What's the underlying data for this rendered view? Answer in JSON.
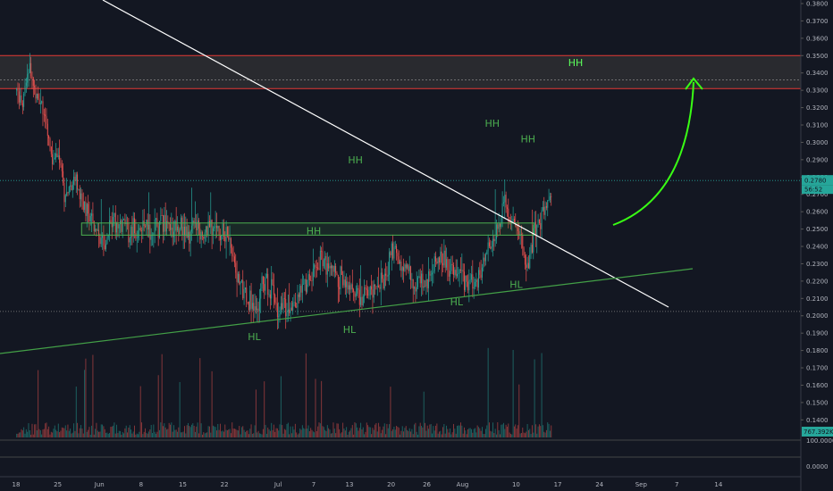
{
  "chart_data": {
    "type": "candlestick",
    "colors": {
      "up": "#26a69a",
      "down": "#ef5350",
      "zone_green": "#4caf50",
      "zone_red": "#e53935",
      "trendline": "#ffffff",
      "support": "#43a047",
      "arrow": "#39ff14",
      "background": "#131722"
    },
    "y_ticks": [
      "0.3800",
      "0.3700",
      "0.3600",
      "0.3500",
      "0.3400",
      "0.3300",
      "0.3200",
      "0.3100",
      "0.3000",
      "0.2900",
      "0.2800",
      "0.2700",
      "0.2600",
      "0.2500",
      "0.2400",
      "0.2300",
      "0.2200",
      "0.2100",
      "0.2000",
      "0.1900",
      "0.1800",
      "0.1700",
      "0.1600",
      "0.1500",
      "0.1400"
    ],
    "y_values": [
      0.38,
      0.37,
      0.36,
      0.35,
      0.34,
      0.33,
      0.32,
      0.31,
      0.3,
      0.29,
      0.28,
      0.27,
      0.26,
      0.25,
      0.24,
      0.23,
      0.22,
      0.21,
      0.2,
      0.19,
      0.18,
      0.17,
      0.16,
      0.15,
      0.14
    ],
    "ylim": [
      0.135,
      0.385
    ],
    "x_ticks": [
      {
        "label": "18",
        "day": 0
      },
      {
        "label": "25",
        "day": 7
      },
      {
        "label": "Jun",
        "day": 14
      },
      {
        "label": "8",
        "day": 21
      },
      {
        "label": "15",
        "day": 28
      },
      {
        "label": "22",
        "day": 35
      },
      {
        "label": "Jul",
        "day": 44
      },
      {
        "label": "7",
        "day": 50
      },
      {
        "label": "13",
        "day": 56
      },
      {
        "label": "20",
        "day": 63
      },
      {
        "label": "26",
        "day": 69
      },
      {
        "label": "Aug",
        "day": 75
      },
      {
        "label": "10",
        "day": 84
      },
      {
        "label": "17",
        "day": 91
      },
      {
        "label": "24",
        "day": 98
      },
      {
        "label": "Sep",
        "day": 105
      },
      {
        "label": "7",
        "day": 111
      },
      {
        "label": "14",
        "day": 118
      }
    ],
    "price_path": [
      [
        0,
        0.33
      ],
      [
        1,
        0.32
      ],
      [
        2,
        0.345
      ],
      [
        3,
        0.33
      ],
      [
        4,
        0.325
      ],
      [
        5,
        0.305
      ],
      [
        6,
        0.29
      ],
      [
        7,
        0.295
      ],
      [
        8,
        0.27
      ],
      [
        9,
        0.275
      ],
      [
        10,
        0.28
      ],
      [
        11,
        0.265
      ],
      [
        12,
        0.26
      ],
      [
        13,
        0.255
      ],
      [
        14,
        0.24
      ],
      [
        15,
        0.245
      ],
      [
        16,
        0.255
      ],
      [
        17,
        0.25
      ],
      [
        18,
        0.252
      ],
      [
        19,
        0.248
      ],
      [
        20,
        0.252
      ],
      [
        21,
        0.25
      ],
      [
        22,
        0.248
      ],
      [
        23,
        0.25
      ],
      [
        24,
        0.252
      ],
      [
        25,
        0.255
      ],
      [
        26,
        0.25
      ],
      [
        27,
        0.253
      ],
      [
        28,
        0.25
      ],
      [
        29,
        0.248
      ],
      [
        30,
        0.252
      ],
      [
        31,
        0.247
      ],
      [
        32,
        0.25
      ],
      [
        33,
        0.253
      ],
      [
        34,
        0.252
      ],
      [
        35,
        0.248
      ],
      [
        36,
        0.24
      ],
      [
        37,
        0.225
      ],
      [
        38,
        0.215
      ],
      [
        39,
        0.21
      ],
      [
        40,
        0.2
      ],
      [
        41,
        0.215
      ],
      [
        42,
        0.22
      ],
      [
        43,
        0.215
      ],
      [
        44,
        0.205
      ],
      [
        45,
        0.207
      ],
      [
        46,
        0.205
      ],
      [
        47,
        0.208
      ],
      [
        48,
        0.215
      ],
      [
        49,
        0.222
      ],
      [
        50,
        0.225
      ],
      [
        51,
        0.235
      ],
      [
        52,
        0.23
      ],
      [
        53,
        0.228
      ],
      [
        54,
        0.222
      ],
      [
        55,
        0.22
      ],
      [
        56,
        0.215
      ],
      [
        57,
        0.21
      ],
      [
        58,
        0.212
      ],
      [
        59,
        0.213
      ],
      [
        60,
        0.215
      ],
      [
        61,
        0.218
      ],
      [
        62,
        0.222
      ],
      [
        63,
        0.24
      ],
      [
        64,
        0.23
      ],
      [
        65,
        0.228
      ],
      [
        66,
        0.225
      ],
      [
        67,
        0.22
      ],
      [
        68,
        0.222
      ],
      [
        69,
        0.218
      ],
      [
        70,
        0.23
      ],
      [
        71,
        0.235
      ],
      [
        72,
        0.232
      ],
      [
        73,
        0.225
      ],
      [
        74,
        0.222
      ],
      [
        75,
        0.22
      ],
      [
        76,
        0.218
      ],
      [
        77,
        0.219
      ],
      [
        78,
        0.225
      ],
      [
        79,
        0.235
      ],
      [
        80,
        0.245
      ],
      [
        81,
        0.255
      ],
      [
        82,
        0.265
      ],
      [
        83,
        0.255
      ],
      [
        84,
        0.25
      ],
      [
        85,
        0.24
      ],
      [
        86,
        0.23
      ],
      [
        87,
        0.25
      ],
      [
        88,
        0.255
      ],
      [
        89,
        0.265
      ],
      [
        90,
        0.27
      ]
    ],
    "current_price": {
      "label": "0.2780",
      "countdown": "56:52",
      "value": 0.278
    },
    "resistance_zone": {
      "top": 0.35,
      "bottom": 0.331,
      "mid": 0.336
    },
    "breakout_zone": {
      "top": 0.2535,
      "bottom": 0.2465,
      "day_start": 11,
      "day_end": 87
    },
    "support_line": {
      "value": 0.2025
    },
    "annotations": [
      {
        "label": "HH",
        "day": 57,
        "value": 0.288
      },
      {
        "label": "HH",
        "day": 50,
        "value": 0.247
      },
      {
        "label": "HH",
        "day": 80,
        "value": 0.309
      },
      {
        "label": "HH",
        "day": 86,
        "value": 0.3
      },
      {
        "label": "HH",
        "day": 94,
        "value": 0.344
      },
      {
        "label": "HL",
        "day": 40,
        "value": 0.186
      },
      {
        "label": "HL",
        "day": 56,
        "value": 0.19
      },
      {
        "label": "HL",
        "day": 74,
        "value": 0.206
      },
      {
        "label": "HL",
        "day": 84,
        "value": 0.216
      }
    ],
    "volume": {
      "last_label": "767.392K"
    },
    "indicator": {
      "labels": [
        "100.0000",
        "0.0000"
      ]
    }
  }
}
